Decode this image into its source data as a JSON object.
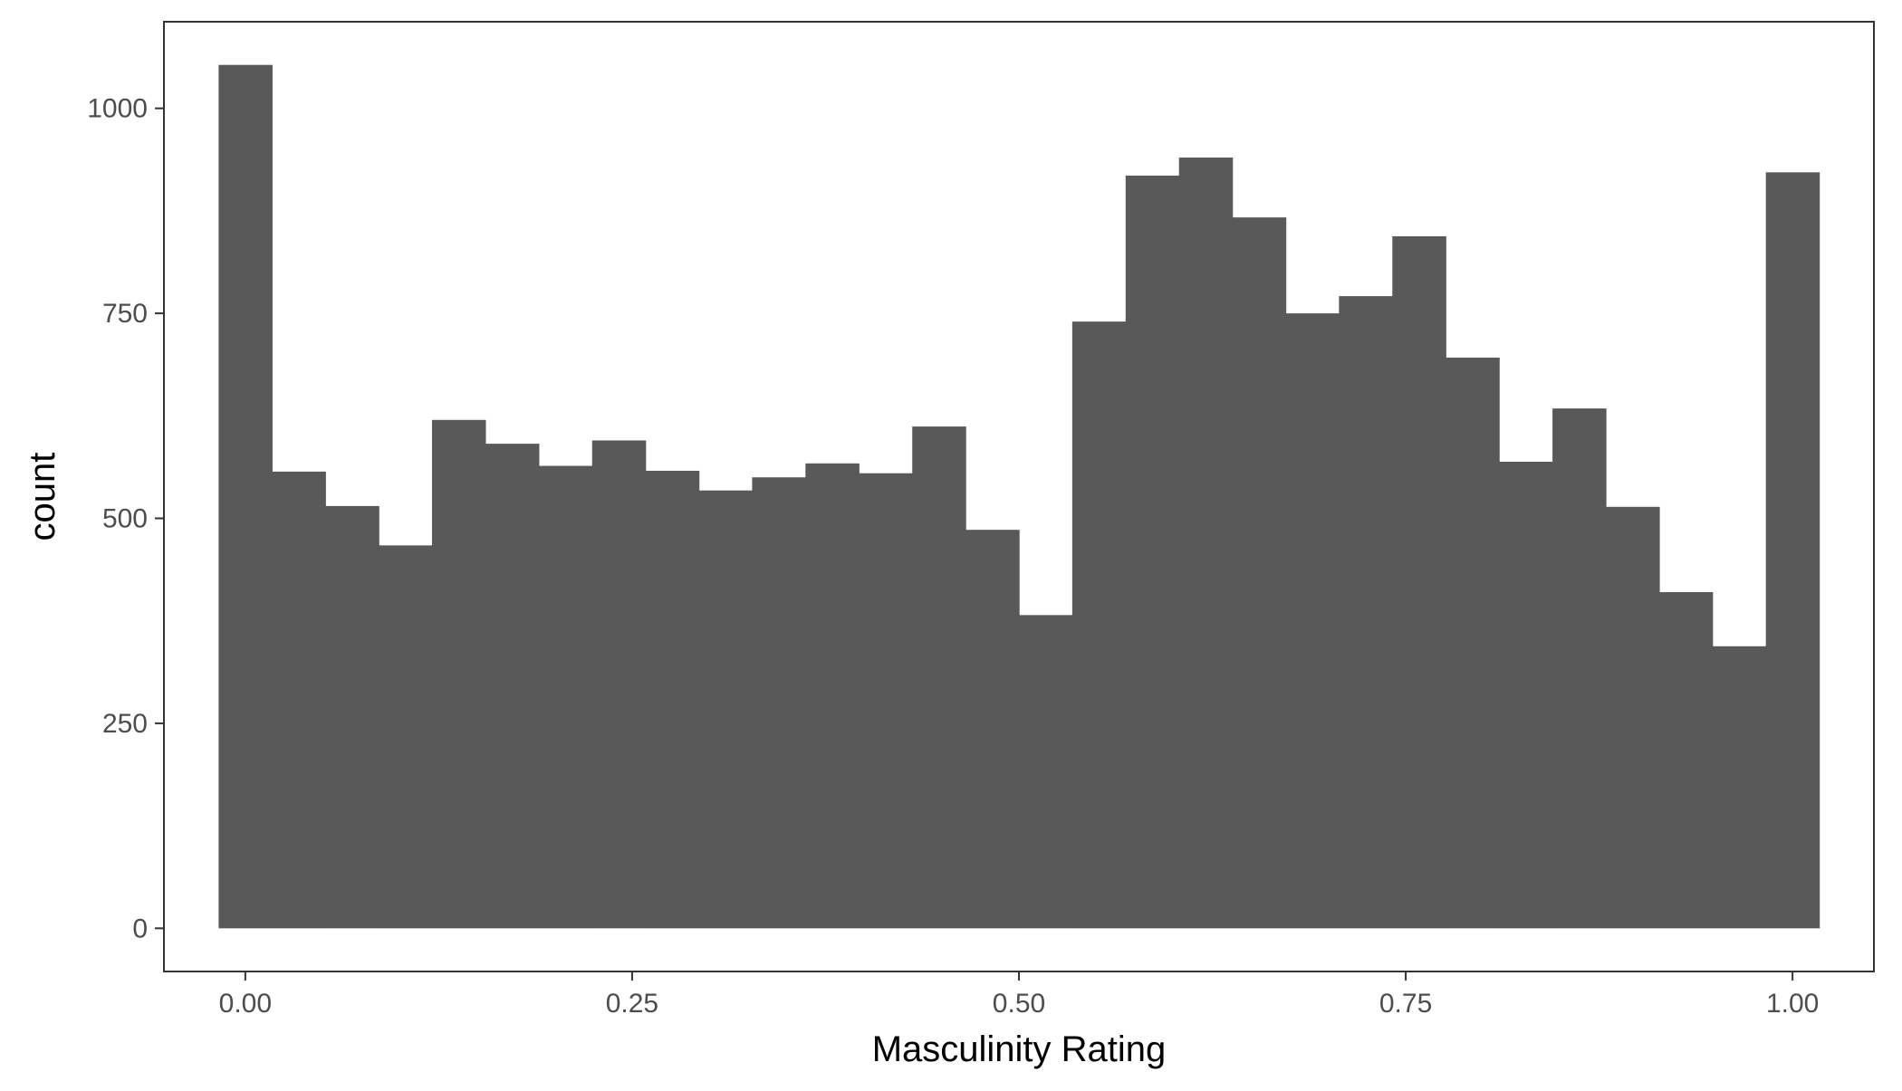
{
  "chart_data": {
    "type": "bar",
    "subtype": "histogram",
    "xlabel": "Masculinity Rating",
    "ylabel": "count",
    "bin_width": 0.0345,
    "bins": [
      {
        "x": 0.0,
        "count": 1053
      },
      {
        "x": 0.0345,
        "count": 557
      },
      {
        "x": 0.069,
        "count": 515
      },
      {
        "x": 0.1034,
        "count": 467
      },
      {
        "x": 0.1379,
        "count": 620
      },
      {
        "x": 0.1724,
        "count": 591
      },
      {
        "x": 0.2069,
        "count": 564
      },
      {
        "x": 0.2414,
        "count": 595
      },
      {
        "x": 0.2759,
        "count": 558
      },
      {
        "x": 0.3103,
        "count": 534
      },
      {
        "x": 0.3448,
        "count": 550
      },
      {
        "x": 0.3793,
        "count": 567
      },
      {
        "x": 0.4138,
        "count": 555
      },
      {
        "x": 0.4483,
        "count": 612
      },
      {
        "x": 0.4828,
        "count": 486
      },
      {
        "x": 0.5172,
        "count": 382
      },
      {
        "x": 0.5517,
        "count": 740
      },
      {
        "x": 0.5862,
        "count": 918
      },
      {
        "x": 0.6207,
        "count": 940
      },
      {
        "x": 0.6552,
        "count": 867
      },
      {
        "x": 0.6897,
        "count": 750
      },
      {
        "x": 0.7241,
        "count": 771
      },
      {
        "x": 0.7586,
        "count": 844
      },
      {
        "x": 0.7931,
        "count": 696
      },
      {
        "x": 0.8276,
        "count": 569
      },
      {
        "x": 0.8621,
        "count": 634
      },
      {
        "x": 0.8966,
        "count": 514
      },
      {
        "x": 0.931,
        "count": 410
      },
      {
        "x": 0.9655,
        "count": 344
      },
      {
        "x": 1.0,
        "count": 922
      }
    ],
    "xlim": [
      -0.0526,
      1.0526
    ],
    "ylim": [
      -52.65,
      1105.65
    ],
    "x_ticks": [
      {
        "value": 0.0,
        "label": "0.00"
      },
      {
        "value": 0.25,
        "label": "0.25"
      },
      {
        "value": 0.5,
        "label": "0.50"
      },
      {
        "value": 0.75,
        "label": "0.75"
      },
      {
        "value": 1.0,
        "label": "1.00"
      }
    ],
    "y_ticks": [
      {
        "value": 0,
        "label": "0"
      },
      {
        "value": 250,
        "label": "250"
      },
      {
        "value": 500,
        "label": "500"
      },
      {
        "value": 750,
        "label": "750"
      },
      {
        "value": 1000,
        "label": "1000"
      }
    ],
    "grid": false,
    "legend": "none",
    "bar_color": "#595959",
    "panel_border_color": "#333333",
    "tick_color": "#333333",
    "tick_label_color": "#4d4d4d",
    "background": "#ffffff"
  }
}
